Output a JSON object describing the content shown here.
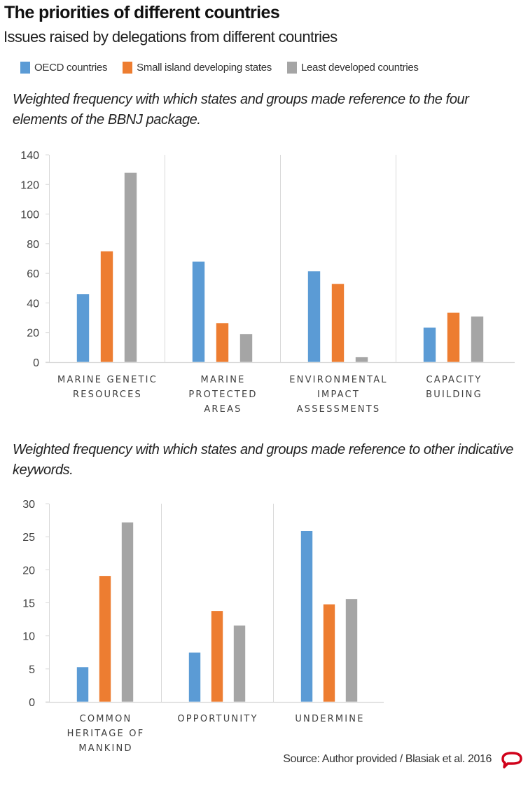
{
  "header": {
    "title": "The priorities of different countries",
    "subtitle": "Issues raised by delegations from different countries"
  },
  "legend": [
    {
      "label": "OECD countries",
      "color": "#5b9bd5"
    },
    {
      "label": "Small island developing states",
      "color": "#ed7d31"
    },
    {
      "label": "Least developed countries",
      "color": "#a5a5a5"
    }
  ],
  "captions": {
    "chart1": "Weighted frequency with which states and groups made reference to the four elements of the BBNJ package.",
    "chart2": "Weighted frequency with which states and groups made reference to other indicative keywords."
  },
  "source": "Source: Author provided / Blasiak et al. 2016",
  "logo": "speech-bubble-logo",
  "chart_data": [
    {
      "type": "bar",
      "title": "Weighted frequency with which states and groups made reference to the four elements of the BBNJ package.",
      "xlabel": "",
      "ylabel": "",
      "ylim": [
        0,
        140
      ],
      "yticks": [
        0,
        20,
        40,
        60,
        80,
        100,
        120,
        140
      ],
      "grid": false,
      "legend_position": "top",
      "categories": [
        [
          "MARINE GENETIC",
          "RESOURCES"
        ],
        [
          "MARINE",
          "PROTECTED",
          "AREAS"
        ],
        [
          "ENVIRONMENTAL",
          "IMPACT",
          "ASSESSMENTS"
        ],
        [
          "CAPACITY",
          "BUILDING"
        ]
      ],
      "series": [
        {
          "name": "OECD countries",
          "color": "#5b9bd5",
          "values": [
            46,
            68,
            61.5,
            23.5
          ]
        },
        {
          "name": "Small island developing states",
          "color": "#ed7d31",
          "values": [
            75,
            26.5,
            53,
            33.5
          ]
        },
        {
          "name": "Least developed countries",
          "color": "#a5a5a5",
          "values": [
            128,
            19,
            3.5,
            31
          ]
        }
      ]
    },
    {
      "type": "bar",
      "title": "Weighted frequency with which states and groups made reference to other indicative keywords.",
      "xlabel": "",
      "ylabel": "",
      "ylim": [
        0,
        30
      ],
      "yticks": [
        0,
        5,
        10,
        15,
        20,
        25,
        30
      ],
      "grid": false,
      "legend_position": "top",
      "categories": [
        [
          "COMMON",
          "HERITAGE OF",
          "MANKIND"
        ],
        [
          "OPPORTUNITY"
        ],
        [
          "UNDERMINE"
        ]
      ],
      "series": [
        {
          "name": "OECD countries",
          "color": "#5b9bd5",
          "values": [
            5.3,
            7.5,
            25.9
          ]
        },
        {
          "name": "Small island developing states",
          "color": "#ed7d31",
          "values": [
            19.1,
            13.8,
            14.8
          ]
        },
        {
          "name": "Least developed countries",
          "color": "#a5a5a5",
          "values": [
            27.2,
            11.6,
            15.6
          ]
        }
      ]
    }
  ]
}
